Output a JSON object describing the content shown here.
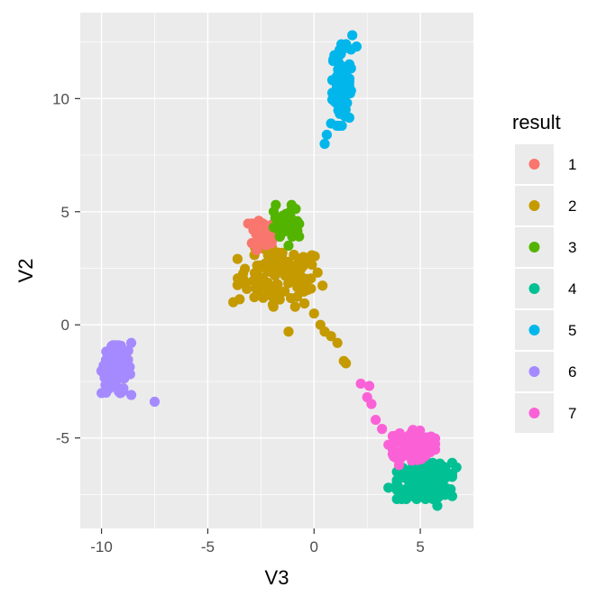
{
  "chart_data": {
    "type": "scatter",
    "xlabel": "V3",
    "ylabel": "V2",
    "xlim": [
      -11,
      7.5
    ],
    "ylim": [
      -9.0,
      13.8
    ],
    "xticks": [
      -10,
      -5,
      0,
      5
    ],
    "yticks": [
      -5,
      0,
      5,
      10
    ],
    "grid": true,
    "legend": {
      "title": "result",
      "placement": "right",
      "labels": [
        "1",
        "2",
        "3",
        "4",
        "5",
        "6",
        "7"
      ]
    },
    "series": [
      {
        "name": "1",
        "color": "#F8766D",
        "center": [
          -2.3,
          4.1
        ],
        "spread": [
          0.4,
          0.35
        ],
        "count": 45,
        "extra": [
          [
            -2.7,
            3.3
          ],
          [
            -2.0,
            3.6
          ],
          [
            -1.9,
            4.4
          ],
          [
            -2.6,
            4.6
          ]
        ]
      },
      {
        "name": "2",
        "color": "#C49A00",
        "center": [
          -1.6,
          2.1
        ],
        "spread": [
          1.0,
          0.65
        ],
        "count": 110,
        "extra": [
          [
            -3.8,
            1.0
          ],
          [
            -1.2,
            -0.3
          ],
          [
            0.0,
            0.5
          ],
          [
            0.3,
            0.0
          ],
          [
            0.5,
            -0.3
          ],
          [
            0.8,
            -0.5
          ],
          [
            1.1,
            -0.8
          ],
          [
            1.4,
            -1.6
          ],
          [
            1.5,
            -1.7
          ],
          [
            -0.5,
            3.0
          ]
        ]
      },
      {
        "name": "3",
        "color": "#53B400",
        "center": [
          -1.3,
          4.6
        ],
        "spread": [
          0.3,
          0.35
        ],
        "count": 45,
        "extra": [
          [
            -1.8,
            5.3
          ],
          [
            -1.2,
            3.5
          ],
          [
            -1.0,
            5.1
          ]
        ]
      },
      {
        "name": "4",
        "color": "#00C094",
        "center": [
          5.2,
          -6.9
        ],
        "spread": [
          0.65,
          0.4
        ],
        "count": 190,
        "extra": [
          [
            3.5,
            -7.2
          ],
          [
            6.7,
            -6.3
          ],
          [
            5.8,
            -8.0
          ]
        ]
      },
      {
        "name": "5",
        "color": "#00B6EB",
        "center": [
          1.3,
          10.6
        ],
        "spread": [
          0.22,
          0.9
        ],
        "count": 90,
        "extra": [
          [
            0.5,
            8.0
          ],
          [
            0.6,
            8.4
          ],
          [
            0.8,
            8.9
          ],
          [
            1.8,
            12.8
          ],
          [
            2.0,
            12.3
          ]
        ]
      },
      {
        "name": "6",
        "color": "#A58AFF",
        "center": [
          -9.3,
          -2.0
        ],
        "spread": [
          0.35,
          0.55
        ],
        "count": 120,
        "extra": [
          [
            -7.5,
            -3.4
          ],
          [
            -9.9,
            -1.8
          ],
          [
            -8.6,
            -0.8
          ]
        ]
      },
      {
        "name": "7",
        "color": "#FB61D7",
        "center": [
          4.7,
          -5.3
        ],
        "spread": [
          0.5,
          0.35
        ],
        "count": 130,
        "extra": [
          [
            2.2,
            -2.6
          ],
          [
            2.6,
            -2.7
          ],
          [
            2.5,
            -3.2
          ],
          [
            2.7,
            -3.5
          ],
          [
            2.9,
            -4.2
          ],
          [
            3.2,
            -4.6
          ],
          [
            3.5,
            -5.3
          ],
          [
            4.0,
            -6.2
          ]
        ]
      }
    ]
  }
}
